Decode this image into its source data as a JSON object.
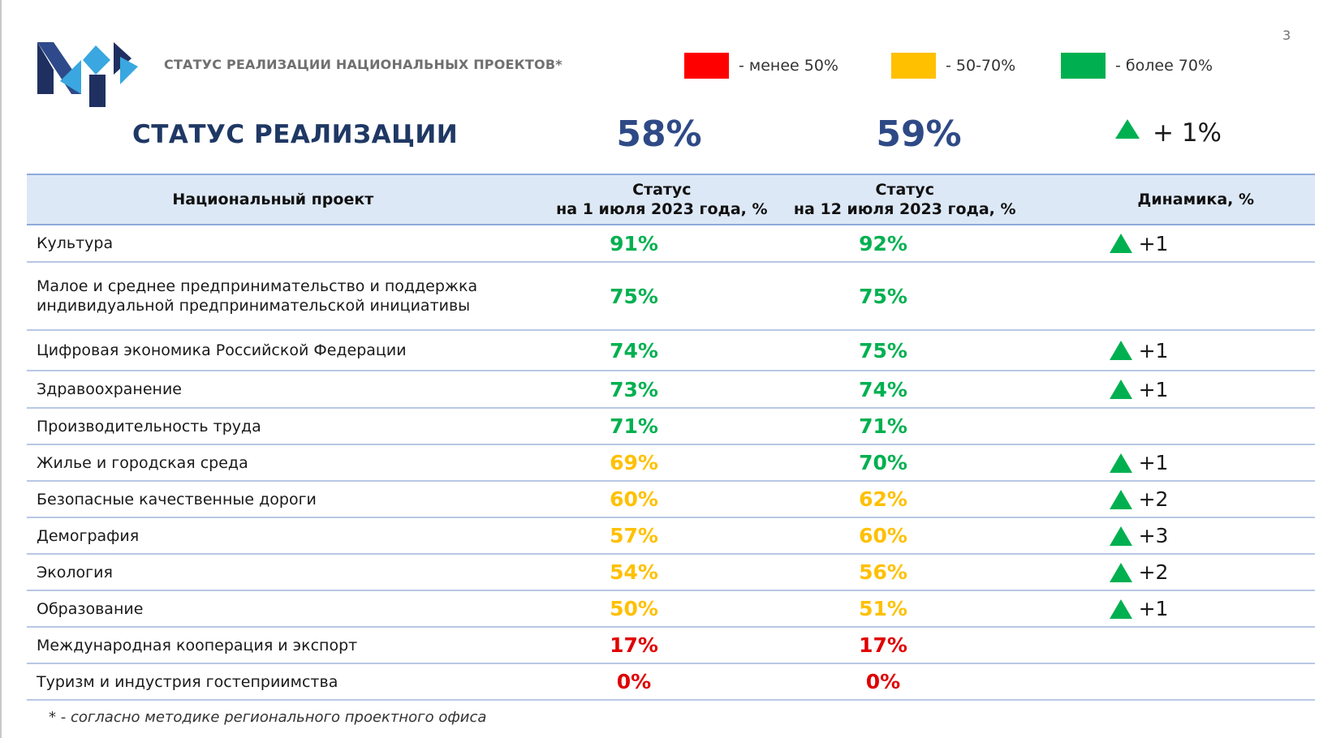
{
  "header": {
    "title": "СТАТУС РЕАЛИЗАЦИИ НАЦИОНАЛЬНЫХ ПРОЕКТОВ*",
    "page_number": "3"
  },
  "legend": [
    {
      "color": "#ff0000",
      "label": "- менее 50%"
    },
    {
      "color": "#ffc000",
      "label": "- 50-70%"
    },
    {
      "color": "#00b050",
      "label": "- более 70%"
    }
  ],
  "summary": {
    "title": "СТАТУС РЕАЛИЗАЦИИ",
    "value_1": "58%",
    "value_2": "59%",
    "change": "+ 1%"
  },
  "table": {
    "headers": {
      "project": "Национальный проект",
      "status_1": "Статус\nна 1 июля 2023 года, %",
      "status_2": "Статус\nна 12 июля 2023 года, %",
      "dynamics": "Динамика, %"
    },
    "rows": [
      {
        "name": "Культура",
        "s1": "91%",
        "s2": "92%",
        "c1": "#00b050",
        "c2": "#00b050",
        "dyn": "+1"
      },
      {
        "name": "Малое и среднее предпринимательство и поддержка\nиндивидуальной предпринимательской инициативы",
        "s1": "75%",
        "s2": "75%",
        "c1": "#00b050",
        "c2": "#00b050",
        "dyn": ""
      },
      {
        "name": "Цифровая экономика Российской Федерации",
        "s1": "74%",
        "s2": "75%",
        "c1": "#00b050",
        "c2": "#00b050",
        "dyn": "+1"
      },
      {
        "name": "Здравоохранение",
        "s1": "73%",
        "s2": "74%",
        "c1": "#00b050",
        "c2": "#00b050",
        "dyn": "+1"
      },
      {
        "name": "Производительность труда",
        "s1": "71%",
        "s2": "71%",
        "c1": "#00b050",
        "c2": "#00b050",
        "dyn": ""
      },
      {
        "name": "Жилье и городская среда",
        "s1": "69%",
        "s2": "70%",
        "c1": "#ffc000",
        "c2": "#00b050",
        "dyn": "+1"
      },
      {
        "name": "Безопасные  качественные дороги",
        "s1": "60%",
        "s2": "62%",
        "c1": "#ffc000",
        "c2": "#ffc000",
        "dyn": "+2"
      },
      {
        "name": "Демография",
        "s1": "57%",
        "s2": "60%",
        "c1": "#ffc000",
        "c2": "#ffc000",
        "dyn": "+3"
      },
      {
        "name": "Экология",
        "s1": "54%",
        "s2": "56%",
        "c1": "#ffc000",
        "c2": "#ffc000",
        "dyn": "+2"
      },
      {
        "name": "Образование",
        "s1": "50%",
        "s2": "51%",
        "c1": "#ffc000",
        "c2": "#ffc000",
        "dyn": "+1"
      },
      {
        "name": "Международная кооперация и экспорт",
        "s1": "17%",
        "s2": "17%",
        "c1": "#e00000",
        "c2": "#e00000",
        "dyn": ""
      },
      {
        "name": "Туризм и индустрия гостеприимства",
        "s1": "0%",
        "s2": "0%",
        "c1": "#e00000",
        "c2": "#e00000",
        "dyn": ""
      }
    ]
  },
  "footnote": "* - согласно методике регионального проектного офиса"
}
